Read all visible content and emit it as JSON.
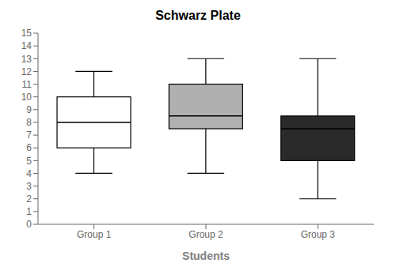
{
  "chart_data": {
    "type": "box",
    "title": "Schwarz Plate",
    "xlabel": "Students",
    "categories": [
      "Group 1",
      "Group 2",
      "Group 3"
    ],
    "stats": [
      {
        "whisker_low": 4.0,
        "q1": 6.0,
        "median": 8.0,
        "q3": 10.0,
        "whisker_high": 12.0
      },
      {
        "whisker_low": 4.0,
        "q1": 7.5,
        "median": 8.5,
        "q3": 11.0,
        "whisker_high": 13.0
      },
      {
        "whisker_low": 2.0,
        "q1": 5.0,
        "median": 7.5,
        "q3": 8.5,
        "whisker_high": 13.0
      }
    ],
    "colors": [
      "#ffffff",
      "#b0b0b0",
      "#2a2a2a"
    ],
    "ylim": [
      0,
      15
    ],
    "yticks": [
      0,
      1,
      2,
      3,
      4,
      5,
      6,
      7,
      8,
      9,
      10,
      11,
      12,
      13,
      14,
      15
    ],
    "grid": false
  }
}
